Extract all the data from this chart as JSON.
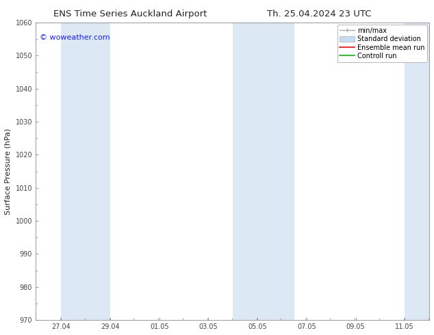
{
  "title_left": "ENS Time Series Auckland Airport",
  "title_right": "Th. 25.04.2024 23 UTC",
  "ylabel": "Surface Pressure (hPa)",
  "ylim": [
    970,
    1060
  ],
  "yticks": [
    970,
    980,
    990,
    1000,
    1010,
    1020,
    1030,
    1040,
    1050,
    1060
  ],
  "xtick_labels": [
    "27.04",
    "29.04",
    "01.05",
    "03.05",
    "05.05",
    "07.05",
    "09.05",
    "11.05"
  ],
  "watermark": "© woweather.com",
  "watermark_color": "#1a1aff",
  "bg_color": "#ffffff",
  "band_color": "#dce9f5",
  "legend_labels": [
    "min/max",
    "Standard deviation",
    "Ensemble mean run",
    "Controll run"
  ],
  "legend_minmax_color": "#aaaaaa",
  "legend_std_color": "#c5ddf0",
  "legend_ens_color": "#ff0000",
  "legend_ctrl_color": "#00bb00",
  "spine_color": "#888888",
  "tick_color": "#444444",
  "title_fontsize": 9.5,
  "ylabel_fontsize": 8,
  "tick_fontsize": 7,
  "watermark_fontsize": 8,
  "legend_fontsize": 7
}
